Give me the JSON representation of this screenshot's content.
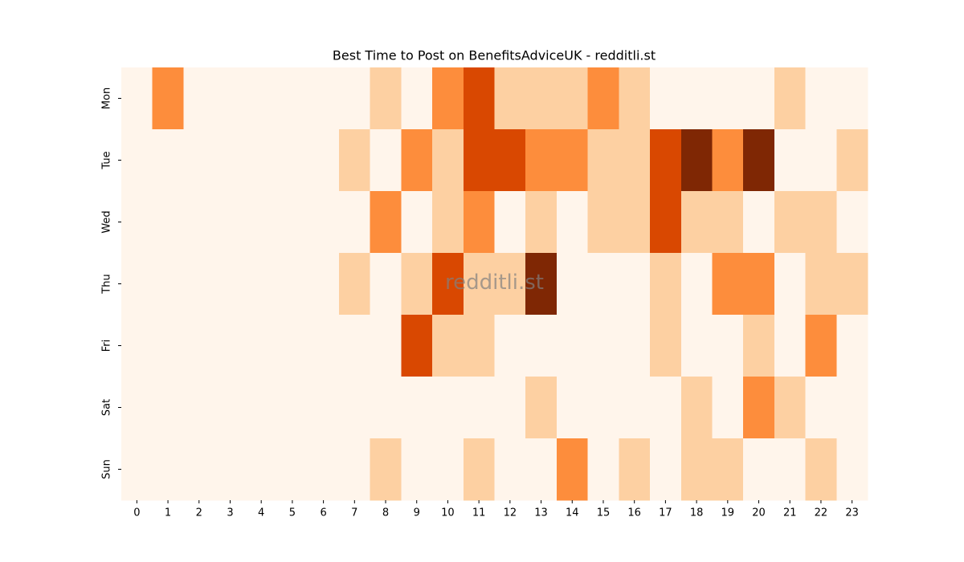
{
  "chart_data": {
    "type": "heatmap",
    "title": "Best Time to Post on BenefitsAdviceUK - redditli.st",
    "watermark": "redditli.st",
    "categories": [
      0,
      1,
      2,
      3,
      4,
      5,
      6,
      7,
      8,
      9,
      10,
      11,
      12,
      13,
      14,
      15,
      16,
      17,
      18,
      19,
      20,
      21,
      22,
      23
    ],
    "y_categories": [
      "Mon",
      "Tue",
      "Wed",
      "Thu",
      "Fri",
      "Sat",
      "Sun"
    ],
    "colors": [
      "#fff5eb",
      "#fdd0a2",
      "#fd8d3c",
      "#d94801",
      "#7f2704"
    ],
    "values": [
      [
        0,
        2,
        0,
        0,
        0,
        0,
        0,
        0,
        1,
        0,
        2,
        3,
        1,
        1,
        1,
        2,
        1,
        0,
        0,
        0,
        0,
        1,
        0,
        0
      ],
      [
        0,
        0,
        0,
        0,
        0,
        0,
        0,
        1,
        0,
        2,
        1,
        3,
        3,
        2,
        2,
        1,
        1,
        3,
        4,
        2,
        4,
        0,
        0,
        1
      ],
      [
        0,
        0,
        0,
        0,
        0,
        0,
        0,
        0,
        2,
        0,
        1,
        2,
        0,
        1,
        0,
        1,
        1,
        3,
        1,
        1,
        0,
        1,
        1,
        0
      ],
      [
        0,
        0,
        0,
        0,
        0,
        0,
        0,
        1,
        0,
        1,
        3,
        1,
        1,
        4,
        0,
        0,
        0,
        1,
        0,
        2,
        2,
        0,
        1,
        1
      ],
      [
        0,
        0,
        0,
        0,
        0,
        0,
        0,
        0,
        0,
        3,
        1,
        1,
        0,
        0,
        0,
        0,
        0,
        1,
        0,
        0,
        1,
        0,
        2,
        0
      ],
      [
        0,
        0,
        0,
        0,
        0,
        0,
        0,
        0,
        0,
        0,
        0,
        0,
        0,
        1,
        0,
        0,
        0,
        0,
        1,
        0,
        2,
        1,
        0,
        0
      ],
      [
        0,
        0,
        0,
        0,
        0,
        0,
        0,
        0,
        1,
        0,
        0,
        1,
        0,
        0,
        2,
        0,
        1,
        0,
        1,
        1,
        0,
        0,
        1,
        0
      ]
    ]
  }
}
